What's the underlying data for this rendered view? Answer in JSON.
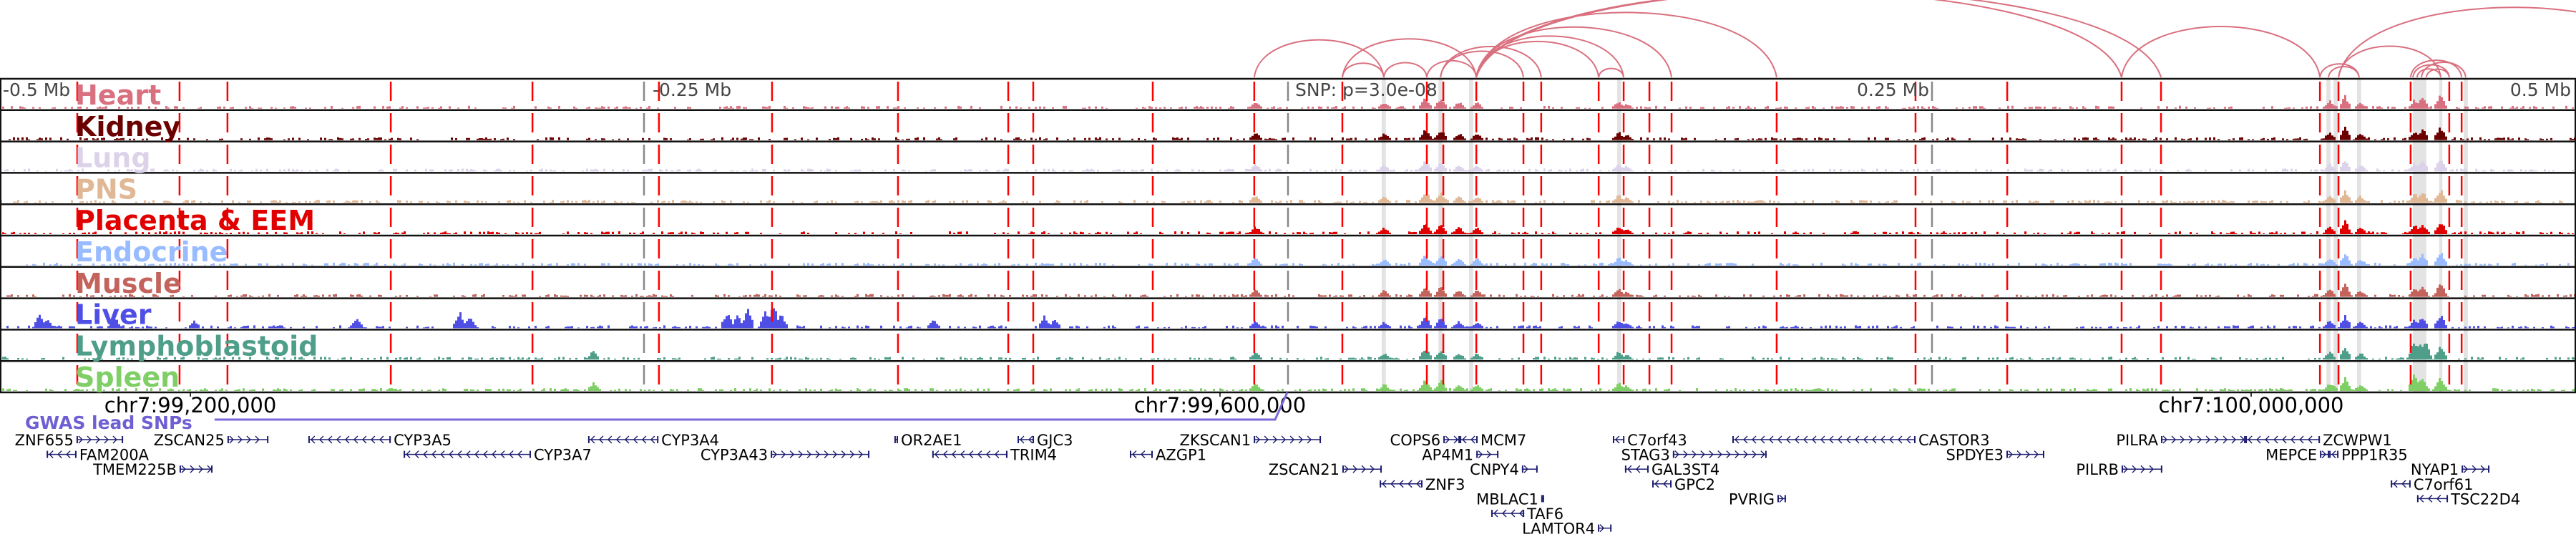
{
  "axis": {
    "left_label": "-0.5 Mb",
    "mid_left_label": "-0.25 Mb",
    "snp_label": "SNP: p=3.0e-08",
    "mid_right_label": "0.25 Mb",
    "right_label": "0.5 Mb",
    "chr_ticks": [
      {
        "label": "chr7:99,200,000",
        "kb": -426.1
      },
      {
        "label": "chr7:99,600,000",
        "kb": -26.4
      },
      {
        "label": "chr7:100,000,000",
        "kb": 373.9
      }
    ]
  },
  "gwas": {
    "label": "GWAS lead SNPs",
    "color": "#6e5fd3"
  },
  "chart_data": {
    "type": "genome-browser",
    "x_unit": "kb relative to lead SNP",
    "xlim": [
      -500,
      500
    ],
    "tracks": [
      {
        "name": "Heart",
        "color": "#d9707f"
      },
      {
        "name": "Kidney",
        "color": "#6b0000"
      },
      {
        "name": "Lung",
        "color": "#dcd3ea"
      },
      {
        "name": "PNS",
        "color": "#e0b896"
      },
      {
        "name": "Placenta & EEM",
        "color": "#e00000"
      },
      {
        "name": "Endocrine",
        "color": "#99bbff"
      },
      {
        "name": "Muscle",
        "color": "#c4635c"
      },
      {
        "name": "Liver",
        "color": "#4f4fe6"
      },
      {
        "name": "Lymphoblastoid",
        "color": "#4f9e8a"
      },
      {
        "name": "Spleen",
        "color": "#7fcf66"
      }
    ],
    "track_peaks": {
      "common": [
        [
          -13,
          0.35
        ],
        [
          37,
          0.3
        ],
        [
          53,
          0.5
        ],
        [
          59,
          0.45
        ],
        [
          66,
          0.3
        ],
        [
          73,
          0.3
        ],
        [
          128,
          0.35
        ],
        [
          131,
          0.25
        ],
        [
          404,
          0.35
        ],
        [
          410,
          0.55
        ],
        [
          416,
          0.3
        ],
        [
          437,
          0.4
        ],
        [
          440,
          0.5
        ],
        [
          447,
          0.6
        ]
      ],
      "Liver": [
        [
          -485,
          0.6
        ],
        [
          -482,
          0.4
        ],
        [
          -456,
          0.5
        ],
        [
          -425,
          0.35
        ],
        [
          -362,
          0.45
        ],
        [
          -322,
          0.7
        ],
        [
          -318,
          0.5
        ],
        [
          -218,
          0.75
        ],
        [
          -214,
          0.55
        ],
        [
          -210,
          0.9
        ],
        [
          -203,
          0.8
        ],
        [
          -200,
          1.0
        ],
        [
          -197,
          0.6
        ],
        [
          -138,
          0.35
        ],
        [
          -95,
          0.5
        ],
        [
          -91,
          0.4
        ]
      ],
      "Lymphoblastoid": [
        [
          437,
          0.9
        ],
        [
          439,
          0.7
        ],
        [
          441,
          0.8
        ],
        [
          -270,
          0.4
        ]
      ],
      "Spleen": [
        [
          437,
          0.8
        ],
        [
          439,
          0.6
        ],
        [
          -270,
          0.35
        ],
        [
          405,
          0.3
        ]
      ]
    },
    "tss_lines_kb": [
      -470,
      -430.3,
      -411.7,
      -348.3,
      -293.3,
      -244.2,
      -200.3,
      -151.4,
      -108.6,
      -98.9,
      -52.5,
      -13.1,
      21.1,
      53.9,
      60.3,
      73.1,
      91.4,
      98.3,
      120.6,
      130.3,
      140.3,
      148.9,
      189.7,
      243.6,
      279.2,
      323.6,
      338.9,
      400.6,
      407.8,
      435.8,
      450.8,
      455.6
    ],
    "reference_lines_kb": [
      -250,
      0,
      250
    ],
    "highlight_regions_kb": [
      [
        36.4,
        38
      ],
      [
        58.4,
        60
      ],
      [
        70.3,
        71.9
      ],
      [
        127.8,
        129.4
      ],
      [
        403.1,
        404.7
      ],
      [
        405.9,
        407.5
      ],
      [
        415,
        416.6
      ],
      [
        436.7,
        441.9
      ],
      [
        446.9,
        448.1
      ],
      [
        456.4,
        458
      ]
    ],
    "loops_kb": [
      [
        -13.1,
        37.2
      ],
      [
        21.1,
        37.2
      ],
      [
        37.2,
        53.9
      ],
      [
        21.1,
        73.1
      ],
      [
        53.9,
        73.1
      ],
      [
        59.2,
        91.4
      ],
      [
        59.2,
        98.3
      ],
      [
        73.1,
        120.6
      ],
      [
        73.1,
        130.3
      ],
      [
        73.1,
        148.9
      ],
      [
        73.1,
        189.7
      ],
      [
        120.6,
        130.3
      ],
      [
        73.1,
        323.6
      ],
      [
        73.1,
        338.9
      ],
      [
        323.6,
        400.6
      ],
      [
        400.6,
        415.8
      ],
      [
        403.9,
        415.8
      ],
      [
        407.8,
        447.5
      ],
      [
        407.8,
        544
      ],
      [
        436.7,
        450.8
      ],
      [
        435.8,
        455.6
      ],
      [
        438.3,
        447.5
      ],
      [
        440,
        457.2
      ],
      [
        441.9,
        450.8
      ]
    ],
    "gwas_snp_kb": [
      -416.7,
      -5.0
    ]
  },
  "genes": [
    {
      "name": "ZNF655",
      "strand": "+",
      "row": 0,
      "start": -470.3,
      "end": -452.2
    },
    {
      "name": "ZSCAN25",
      "strand": "+",
      "row": 0,
      "start": -411.7,
      "end": -395.8
    },
    {
      "name": "CYP3A5",
      "strand": "-",
      "row": 0,
      "start": -380.3,
      "end": -348.3
    },
    {
      "name": "CYP3A4",
      "strand": "-",
      "row": 0,
      "start": -271.7,
      "end": -244.4
    },
    {
      "name": "FAM200A",
      "strand": "-",
      "row": 1,
      "start": -481.9,
      "end": -470.3
    },
    {
      "name": "CYP3A7",
      "strand": "-",
      "row": 1,
      "start": -343.3,
      "end": -293.9
    },
    {
      "name": "CYP3A43",
      "strand": "+",
      "row": 1,
      "start": -200.8,
      "end": -162.5
    },
    {
      "name": "TMEM225B",
      "strand": "+",
      "row": 2,
      "start": -430.3,
      "end": -417.5
    },
    {
      "name": "OR2AE1",
      "strand": "-",
      "row": 0,
      "start": -152.8,
      "end": -151.4
    },
    {
      "name": "GJC3",
      "strand": "-",
      "row": 0,
      "start": -105.0,
      "end": -98.6
    },
    {
      "name": "TRIM4",
      "strand": "-",
      "row": 1,
      "start": -138.1,
      "end": -108.9
    },
    {
      "name": "ZKSCAN1",
      "strand": "+",
      "row": 0,
      "start": -13.3,
      "end": 12.8
    },
    {
      "name": "AZGP1",
      "strand": "-",
      "row": 1,
      "start": -61.4,
      "end": -52.5
    },
    {
      "name": "ZSCAN21",
      "strand": "+",
      "row": 2,
      "start": 21.1,
      "end": 36.4
    },
    {
      "name": "COPS6",
      "strand": "+",
      "row": 0,
      "start": 60.3,
      "end": 66.7
    },
    {
      "name": "MCM7",
      "strand": "-",
      "row": 0,
      "start": 66.7,
      "end": 73.6
    },
    {
      "name": "AP4M1",
      "strand": "+",
      "row": 1,
      "start": 73.1,
      "end": 81.7
    },
    {
      "name": "CNPY4",
      "strand": "+",
      "row": 2,
      "start": 90.8,
      "end": 96.9
    },
    {
      "name": "ZNF3",
      "strand": "-",
      "row": 3,
      "start": 35.6,
      "end": 52.2
    },
    {
      "name": "MBLAC1",
      "strand": "+",
      "row": 4,
      "start": 98.3,
      "end": 99.4
    },
    {
      "name": "TAF6",
      "strand": "-",
      "row": 5,
      "start": 78.9,
      "end": 91.7
    },
    {
      "name": "LAMTOR4",
      "strand": "+",
      "row": 6,
      "start": 120.3,
      "end": 125.6
    },
    {
      "name": "C7orf43",
      "strand": "-",
      "row": 0,
      "start": 126.1,
      "end": 130.6
    },
    {
      "name": "STAG3",
      "strand": "+",
      "row": 1,
      "start": 149.4,
      "end": 185.8
    },
    {
      "name": "GAL3ST4",
      "strand": "-",
      "row": 2,
      "start": 130.8,
      "end": 140.0
    },
    {
      "name": "GPC2",
      "strand": "-",
      "row": 3,
      "start": 141.4,
      "end": 148.9
    },
    {
      "name": "PVRIG",
      "strand": "+",
      "row": 4,
      "start": 190.0,
      "end": 193.3
    },
    {
      "name": "CASTOR3",
      "strand": "-",
      "row": 0,
      "start": 172.5,
      "end": 243.6
    },
    {
      "name": "SPDYE3",
      "strand": "+",
      "row": 1,
      "start": 278.9,
      "end": 293.6
    },
    {
      "name": "PILRA",
      "strand": "+",
      "row": 0,
      "start": 338.9,
      "end": 371.7
    },
    {
      "name": "ZCWPW1",
      "strand": "-",
      "row": 0,
      "start": 371.7,
      "end": 400.6
    },
    {
      "name": "MEPCE",
      "strand": "+",
      "row": 1,
      "start": 400.6,
      "end": 404.2
    },
    {
      "name": "PPP1R35",
      "strand": "-",
      "row": 1,
      "start": 404.2,
      "end": 407.8
    },
    {
      "name": "PILRB",
      "strand": "+",
      "row": 2,
      "start": 323.6,
      "end": 339.4
    },
    {
      "name": "NYAP1",
      "strand": "+",
      "row": 2,
      "start": 455.6,
      "end": 466.4
    },
    {
      "name": "C7orf61",
      "strand": "-",
      "row": 3,
      "start": 428.1,
      "end": 435.8
    },
    {
      "name": "TSC22D4",
      "strand": "-",
      "row": 4,
      "start": 438.3,
      "end": 450.3
    }
  ],
  "colors": {
    "tss_line": "#ff0000",
    "loop": "#d9707f",
    "gene": "#1c1c70",
    "highlight": "#e3e3e3"
  }
}
